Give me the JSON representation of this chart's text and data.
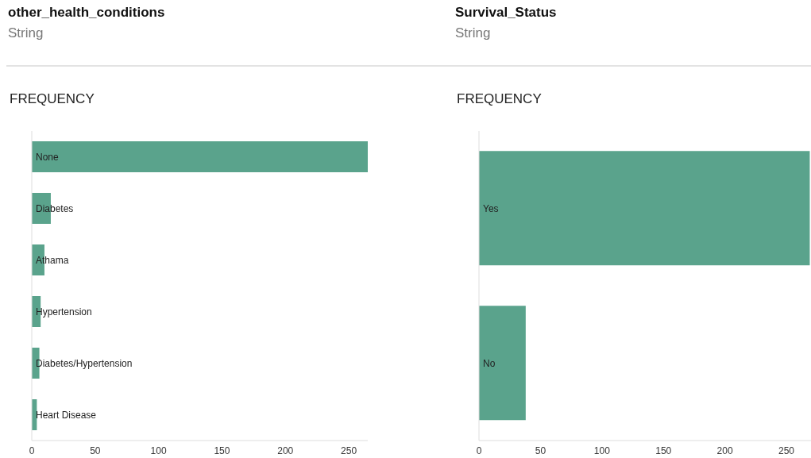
{
  "chart_data": [
    {
      "type": "bar",
      "orientation": "horizontal",
      "title": "other_health_conditions",
      "subtitle": "String",
      "xlabel": "FREQUENCY",
      "categories": [
        "None",
        "Diabetes",
        "Athama",
        "Hypertension",
        "Diabetes/Hypertension",
        "Heart Disease"
      ],
      "values": [
        265,
        15,
        10,
        7,
        6,
        4
      ],
      "color": "#5aa38c",
      "xlim": [
        0,
        265
      ],
      "xticks": [
        0,
        50,
        100,
        150,
        200,
        250
      ]
    },
    {
      "type": "bar",
      "orientation": "horizontal",
      "title": "Survival_Status",
      "subtitle": "String",
      "xlabel": "FREQUENCY",
      "categories": [
        "Yes",
        "No"
      ],
      "values": [
        269,
        38
      ],
      "color": "#5aa38c",
      "xlim": [
        0,
        270
      ],
      "xticks": [
        0,
        50,
        100,
        150,
        200,
        250
      ]
    }
  ]
}
